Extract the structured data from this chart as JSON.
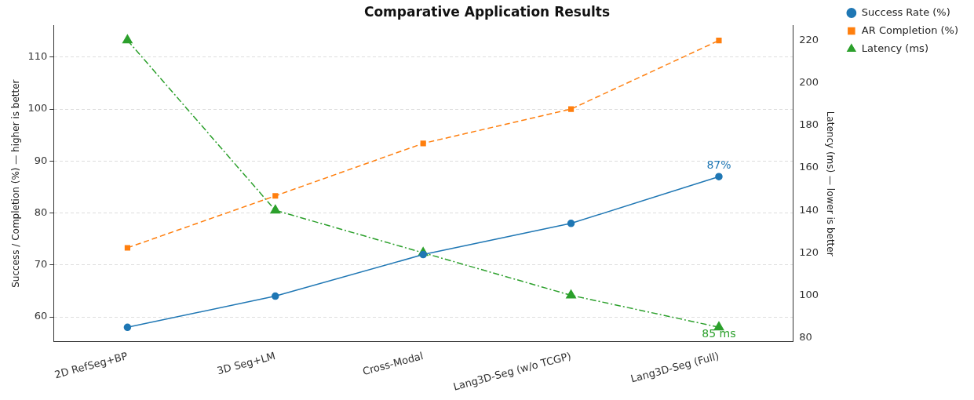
{
  "chart_data": {
    "type": "line",
    "title": "Comparative Application Results",
    "ylabel": "Success / Completion (%) — higher is better",
    "y2label": "Latency (ms) — lower is better",
    "categories": [
      "2D RefSeg+BP",
      "3D Seg+LM",
      "Cross-Modal",
      "Lang3D-Seg (w/o TCGP)",
      "Lang3D-Seg (Full)"
    ],
    "series": [
      {
        "name": "Success Rate (%)",
        "color": "#1f77b4",
        "values": [
          58,
          64,
          72,
          78,
          87
        ],
        "marker": "circle",
        "line_style": "solid",
        "value_labels": [
          null,
          null,
          null,
          null,
          "87%"
        ]
      },
      {
        "name": "AR Completion (%)",
        "color": "#ff7f0e",
        "values": [
          73.3,
          83.3,
          93.4,
          100,
          113.2
        ],
        "marker": "square",
        "line_style": "dashed"
      },
      {
        "name": "Latency (ms)",
        "color": "#2ca02c",
        "values": [
          220,
          140,
          120,
          100,
          85
        ],
        "marker": "triangle",
        "line_style": "dashdot",
        "axis": "y2",
        "value_labels": [
          null,
          null,
          null,
          null,
          "85 ms"
        ]
      }
    ],
    "ylim": [
      55.2,
      116.1
    ],
    "yticks": [
      60,
      70,
      80,
      90,
      100,
      110
    ],
    "y2lim": [
      78.1,
      227
    ],
    "y2ticks": [
      80,
      100,
      120,
      140,
      160,
      180,
      200,
      220
    ],
    "grid": "y",
    "legend": "top right"
  }
}
